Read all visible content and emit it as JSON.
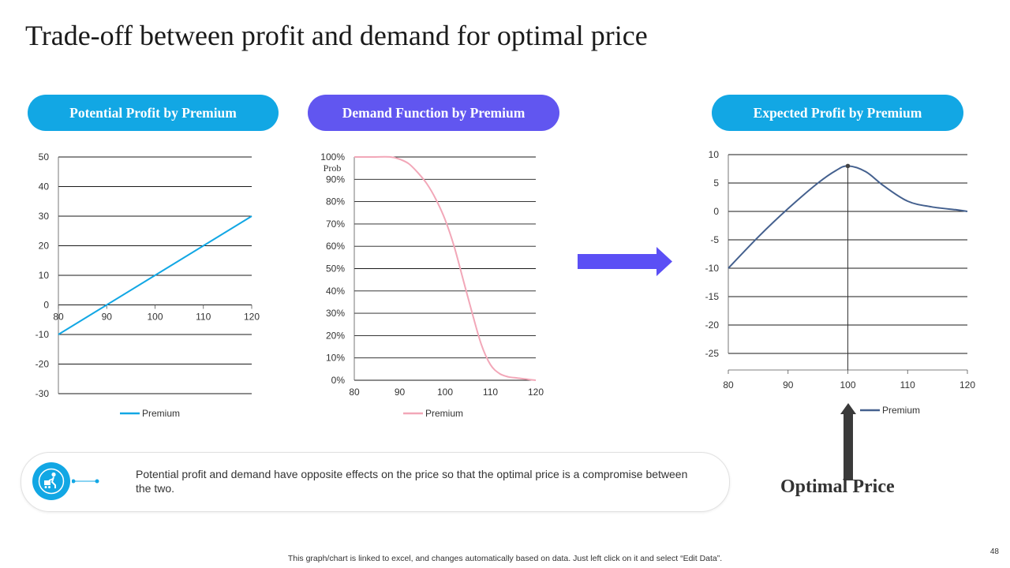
{
  "slide": {
    "title": "Trade-off between profit and demand for optimal price",
    "callout_text": "Potential profit and demand have opposite effects on the price so that the optimal price is a compromise between  the two.",
    "optimal_label": "Optimal Price",
    "footer_note": "This graph/chart is linked to excel,  and changes automatically based on data. Just left click on it and select “Edit Data”.",
    "page_number": "48"
  },
  "colors": {
    "pill_blue": "#12a7e4",
    "pill_violet": "#6156f0",
    "arrow_violet": "#5b4ff5",
    "arrow_dark": "#3a3a3a",
    "series_profit": "#12a7e4",
    "series_demand": "#f2a7b8",
    "series_expected": "#44608e"
  },
  "chart_data": [
    {
      "type": "line",
      "title": "Potential Profit by Premium",
      "x": [
        80,
        90,
        100,
        110,
        120
      ],
      "series": [
        {
          "name": "Premium",
          "values": [
            -10,
            0,
            10,
            20,
            30
          ]
        }
      ],
      "xlim": [
        80,
        120
      ],
      "ylim": [
        -30,
        50
      ],
      "yticks": [
        "50",
        "40",
        "30",
        "20",
        "10",
        "0",
        "-10",
        "-20",
        "-30"
      ],
      "xticks": [
        "80",
        "90",
        "100",
        "110",
        "120"
      ],
      "legend": "Premium",
      "legend_position": "bottom"
    },
    {
      "type": "line",
      "title": "Demand Function by Premium",
      "ylabel": "Prob",
      "x": [
        80,
        84,
        88,
        90,
        92,
        94,
        96,
        98,
        100,
        102,
        104,
        106,
        108,
        110,
        112,
        114,
        116,
        118,
        120
      ],
      "series": [
        {
          "name": "Premium",
          "values": [
            1.0,
            1.0,
            1.0,
            0.99,
            0.97,
            0.93,
            0.88,
            0.81,
            0.72,
            0.6,
            0.45,
            0.3,
            0.16,
            0.07,
            0.03,
            0.015,
            0.01,
            0.005,
            0.0
          ]
        }
      ],
      "xlim": [
        80,
        120
      ],
      "ylim": [
        0,
        1
      ],
      "yticks": [
        "100%",
        "90%",
        "80%",
        "70%",
        "60%",
        "50%",
        "40%",
        "30%",
        "20%",
        "10%",
        "0%"
      ],
      "xticks": [
        "80",
        "90",
        "100",
        "110",
        "120"
      ],
      "legend": "Premium",
      "legend_position": "bottom"
    },
    {
      "type": "line",
      "title": "Expected Profit by Premium",
      "x": [
        80,
        85,
        90,
        95,
        98,
        100,
        103,
        106,
        110,
        114,
        118,
        120
      ],
      "series": [
        {
          "name": "Premium",
          "values": [
            -10,
            -4.5,
            0.5,
            5,
            7.2,
            8,
            7,
            4.5,
            1.8,
            0.8,
            0.3,
            0
          ]
        }
      ],
      "xlim": [
        80,
        120
      ],
      "ylim": [
        -25,
        10
      ],
      "yticks": [
        "10",
        "5",
        "0",
        "-5",
        "-10",
        "-15",
        "-20",
        "-25"
      ],
      "xticks": [
        "80",
        "90",
        "100",
        "110",
        "120"
      ],
      "optimal_x": 100,
      "optimal_y": 8,
      "legend": "Premium",
      "legend_position": "bottom-right"
    }
  ]
}
